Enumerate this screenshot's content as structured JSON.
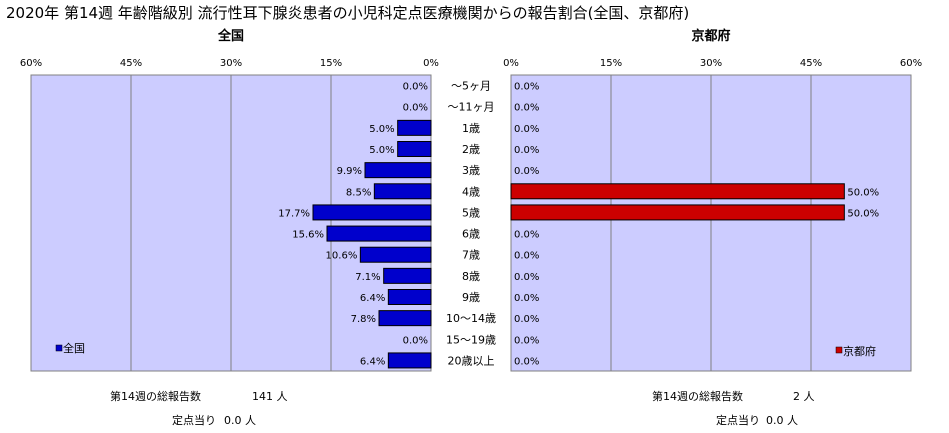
{
  "title": "2020年 第14週 年齢階級別 流行性耳下腺炎患者の小児科定点医療機関からの報告割合(全国、京都府)",
  "chart_data": [
    {
      "type": "bar",
      "orientation": "horizontal",
      "title": "全国",
      "categories": [
        "～5ヶ月",
        "～11ヶ月",
        "1歳",
        "2歳",
        "3歳",
        "4歳",
        "5歳",
        "6歳",
        "7歳",
        "8歳",
        "9歳",
        "10～14歳",
        "15～19歳",
        "20歳以上"
      ],
      "series": [
        {
          "name": "全国",
          "values": [
            0.0,
            0.0,
            5.0,
            5.0,
            9.9,
            8.5,
            17.7,
            15.6,
            10.6,
            7.1,
            6.4,
            7.8,
            0.0,
            6.4
          ]
        }
      ],
      "value_labels": [
        "0.0%",
        "0.0%",
        "5.0%",
        "5.0%",
        "9.9%",
        "8.5%",
        "17.7%",
        "15.6%",
        "10.6%",
        "7.1%",
        "6.4%",
        "7.8%",
        "0.0%",
        "6.4%"
      ],
      "xlim": [
        0,
        60
      ],
      "xticks": [
        "60%",
        "45%",
        "30%",
        "15%",
        "0%"
      ],
      "reversed": true,
      "bar_color": "#0000cc",
      "plot_bg": "#ccccff",
      "legend": "bottom-left"
    },
    {
      "type": "bar",
      "orientation": "horizontal",
      "title": "京都府",
      "categories": [
        "～5ヶ月",
        "～11ヶ月",
        "1歳",
        "2歳",
        "3歳",
        "4歳",
        "5歳",
        "6歳",
        "7歳",
        "8歳",
        "9歳",
        "10～14歳",
        "15～19歳",
        "20歳以上"
      ],
      "series": [
        {
          "name": "京都府",
          "values": [
            0.0,
            0.0,
            0.0,
            0.0,
            0.0,
            50.0,
            50.0,
            0.0,
            0.0,
            0.0,
            0.0,
            0.0,
            0.0,
            0.0
          ]
        }
      ],
      "value_labels": [
        "0.0%",
        "0.0%",
        "0.0%",
        "0.0%",
        "0.0%",
        "50.0%",
        "50.0%",
        "0.0%",
        "0.0%",
        "0.0%",
        "0.0%",
        "0.0%",
        "0.0%",
        "0.0%"
      ],
      "xlim": [
        0,
        60
      ],
      "xticks": [
        "0%",
        "15%",
        "30%",
        "45%",
        "60%"
      ],
      "reversed": false,
      "bar_color": "#cc0000",
      "plot_bg": "#ccccff",
      "legend": "bottom-right"
    }
  ],
  "footer": {
    "national_total_label": "第14週の総報告数",
    "national_total_value": "141 人",
    "national_per_label": "定点当り",
    "national_per_value": "0.0 人",
    "kyoto_total_label": "第14週の総報告数",
    "kyoto_total_value": "2 人",
    "kyoto_per_label": "定点当り",
    "kyoto_per_value": "0.0 人"
  }
}
